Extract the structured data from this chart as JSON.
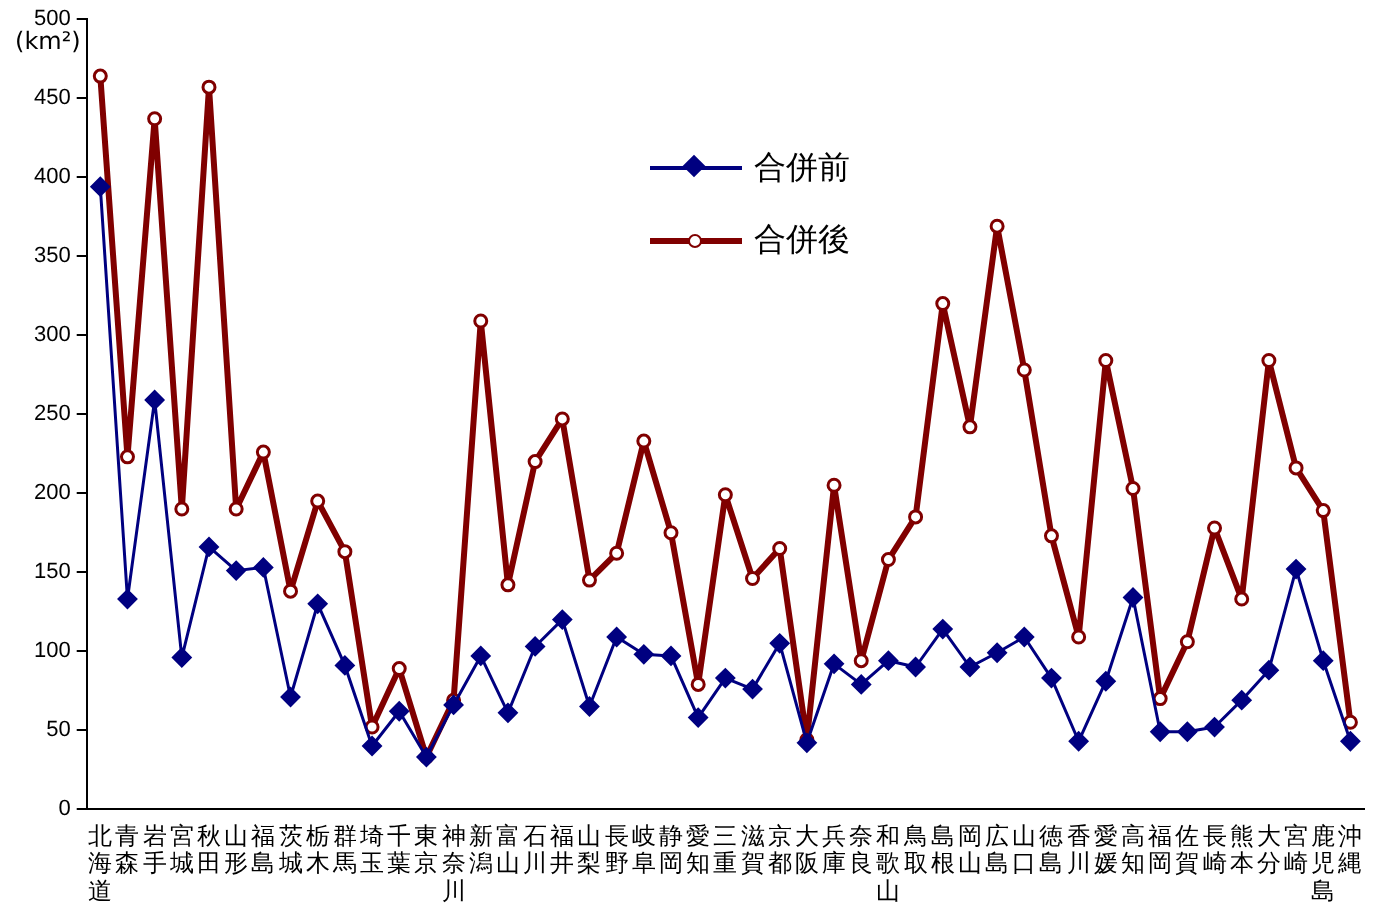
{
  "chart_data": {
    "type": "line",
    "ylabel": "(km²)",
    "categories": [
      "北海道",
      "青森",
      "岩手",
      "宮城",
      "秋田",
      "山形",
      "福島",
      "茨城",
      "栃木",
      "群馬",
      "埼玉",
      "千葉",
      "東京",
      "神奈川",
      "新潟",
      "富山",
      "石川",
      "福井",
      "山梨",
      "長野",
      "岐阜",
      "静岡",
      "愛知",
      "三重",
      "滋賀",
      "京都",
      "大阪",
      "兵庫",
      "奈良",
      "和歌山",
      "鳥取",
      "島根",
      "岡山",
      "広島",
      "山口",
      "徳島",
      "香川",
      "愛媛",
      "高知",
      "福岡",
      "佐賀",
      "長崎",
      "熊本",
      "大分",
      "宮崎",
      "鹿児島",
      "沖縄"
    ],
    "series": [
      {
        "name": "合併前",
        "color": "#000080",
        "marker": "diamond",
        "values": [
          394,
          133,
          259,
          96,
          166,
          151,
          153,
          71,
          130,
          91,
          40,
          62,
          33,
          66,
          97,
          61,
          103,
          120,
          65,
          109,
          98,
          97,
          58,
          83,
          76,
          105,
          42,
          92,
          79,
          94,
          90,
          114,
          90,
          99,
          109,
          83,
          43,
          81,
          134,
          49,
          49,
          52,
          69,
          88,
          152,
          94,
          43
        ]
      },
      {
        "name": "合併後",
        "color": "#800000",
        "marker": "circle",
        "values": [
          464,
          223,
          437,
          190,
          457,
          190,
          226,
          138,
          195,
          163,
          52,
          89,
          33,
          69,
          309,
          142,
          220,
          247,
          145,
          162,
          233,
          175,
          79,
          199,
          146,
          165,
          44,
          205,
          94,
          158,
          185,
          320,
          242,
          369,
          278,
          173,
          109,
          284,
          203,
          70,
          106,
          178,
          133,
          284,
          216,
          189,
          55
        ]
      }
    ],
    "ylim": [
      0,
      500
    ],
    "yticks": [
      0,
      50,
      100,
      150,
      200,
      250,
      300,
      350,
      400,
      450,
      500
    ],
    "grid": false,
    "legend": "top"
  }
}
